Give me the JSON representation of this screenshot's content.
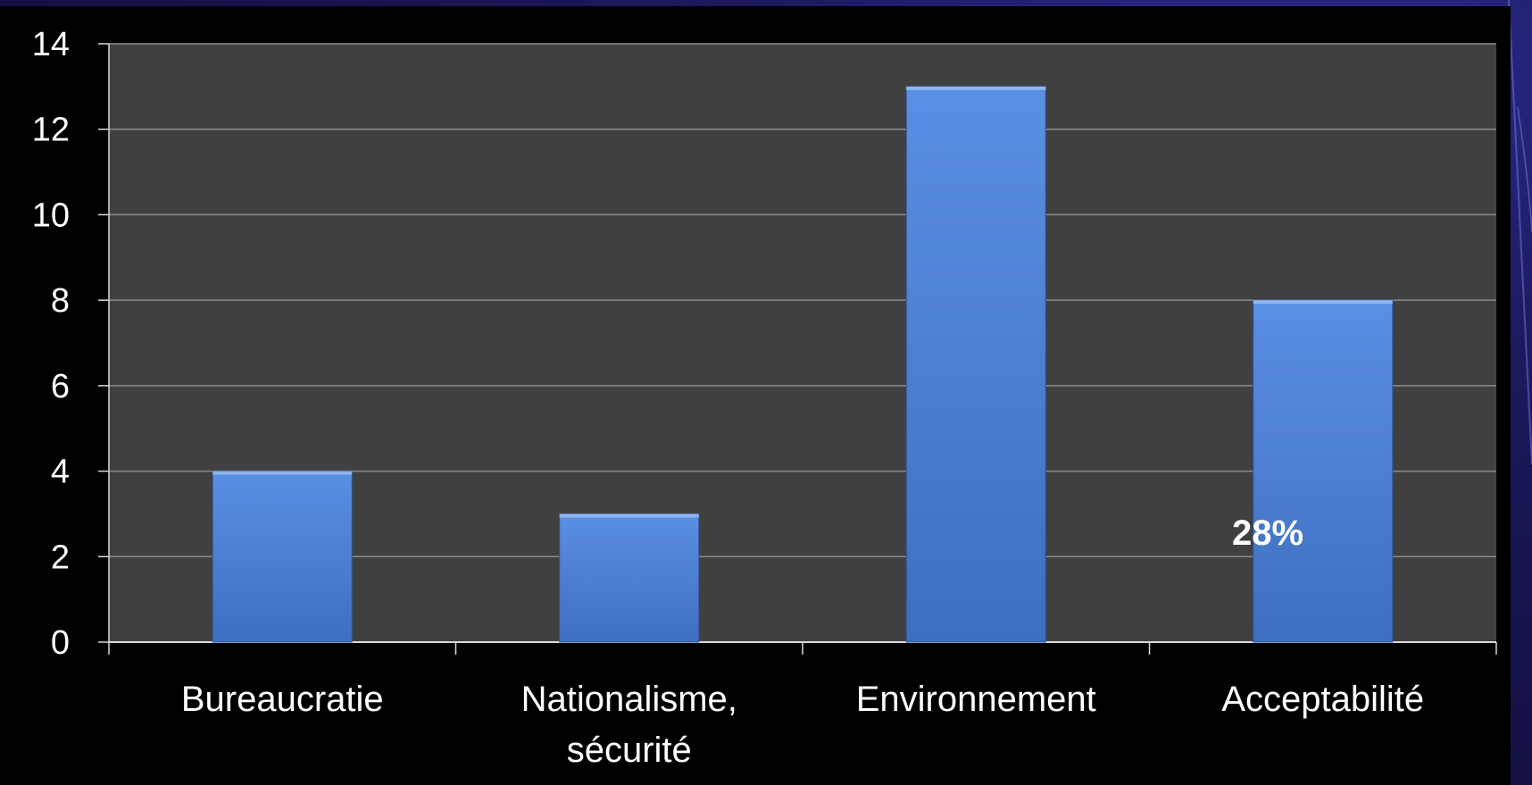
{
  "chart_data": {
    "type": "bar",
    "categories": [
      "Bureaucratie",
      "Nationalisme,\nsécurité",
      "Environnement",
      "Acceptabilité"
    ],
    "values": [
      4,
      3,
      13,
      8
    ],
    "ylim": [
      0,
      14
    ],
    "yticks": [
      0,
      2,
      4,
      6,
      8,
      10,
      12,
      14
    ],
    "title": "",
    "xlabel": "",
    "ylabel": "",
    "grid": true,
    "legend": "none",
    "annotation": "28%",
    "colors": {
      "bar_top": "#5b8fe3",
      "bar_bottom": "#3d6fc0",
      "plot_bg": "#404040",
      "gridline": "#8c8c8c",
      "text": "#ffffff"
    }
  }
}
